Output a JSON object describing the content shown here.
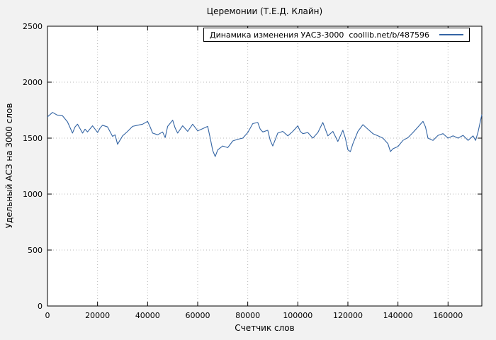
{
  "chart_data": {
    "type": "line",
    "title": "Церемонии (Т.Е.Д. Клайн)",
    "xlabel": "Счетчик слов",
    "ylabel": "Удельный АСЗ на 3000 слов",
    "legend": "Динамика изменения УАСЗ-3000  coollib.net/b/487596",
    "legend_position": "top-right-inside-boxed",
    "xlim": [
      0,
      173500
    ],
    "ylim": [
      0,
      2500
    ],
    "x_ticks": [
      0,
      20000,
      40000,
      60000,
      80000,
      100000,
      120000,
      140000,
      160000
    ],
    "y_ticks": [
      0,
      500,
      1000,
      1500,
      2000,
      2500
    ],
    "grid": true,
    "grid_style": "dotted",
    "colors": {
      "line": "#3465a4",
      "background": "#f2f2f2",
      "plot_background": "#ffffff",
      "grid": "#b8b8b8",
      "axis": "#000000"
    },
    "series": [
      {
        "name": "Динамика изменения УАСЗ-3000  coollib.net/b/487596",
        "x": [
          0,
          2000,
          4000,
          6000,
          8000,
          10000,
          11000,
          12000,
          14000,
          15000,
          16000,
          18000,
          20000,
          21000,
          22000,
          24000,
          26000,
          27000,
          28000,
          30000,
          32000,
          34000,
          36000,
          38000,
          40000,
          41000,
          42000,
          44000,
          46000,
          47000,
          48000,
          50000,
          51000,
          52000,
          54000,
          56000,
          58000,
          60000,
          62000,
          64000,
          65000,
          66000,
          67000,
          68000,
          70000,
          72000,
          74000,
          76000,
          78000,
          80000,
          82000,
          84000,
          85000,
          86000,
          88000,
          89000,
          90000,
          92000,
          94000,
          96000,
          98000,
          100000,
          101000,
          102000,
          104000,
          106000,
          108000,
          110000,
          111000,
          112000,
          114000,
          116000,
          118000,
          119000,
          120000,
          121000,
          122000,
          124000,
          126000,
          128000,
          130000,
          132000,
          134000,
          136000,
          137000,
          138000,
          140000,
          142000,
          144000,
          146000,
          148000,
          150000,
          151000,
          152000,
          154000,
          156000,
          158000,
          160000,
          162000,
          164000,
          166000,
          168000,
          170000,
          171000,
          172000,
          173500
        ],
        "y": [
          1690,
          1730,
          1705,
          1700,
          1645,
          1545,
          1600,
          1625,
          1545,
          1580,
          1555,
          1610,
          1550,
          1590,
          1615,
          1600,
          1515,
          1530,
          1445,
          1520,
          1560,
          1605,
          1615,
          1625,
          1650,
          1600,
          1545,
          1530,
          1555,
          1505,
          1605,
          1660,
          1590,
          1545,
          1610,
          1560,
          1625,
          1565,
          1585,
          1605,
          1500,
          1390,
          1335,
          1395,
          1430,
          1415,
          1475,
          1490,
          1500,
          1550,
          1630,
          1640,
          1580,
          1555,
          1570,
          1480,
          1430,
          1545,
          1560,
          1520,
          1560,
          1610,
          1560,
          1540,
          1550,
          1500,
          1550,
          1640,
          1580,
          1520,
          1560,
          1470,
          1570,
          1500,
          1395,
          1380,
          1450,
          1560,
          1620,
          1580,
          1540,
          1520,
          1500,
          1450,
          1380,
          1405,
          1425,
          1480,
          1505,
          1550,
          1600,
          1650,
          1600,
          1500,
          1480,
          1525,
          1540,
          1500,
          1520,
          1500,
          1525,
          1480,
          1520,
          1480,
          1555,
          1710
        ]
      }
    ]
  }
}
